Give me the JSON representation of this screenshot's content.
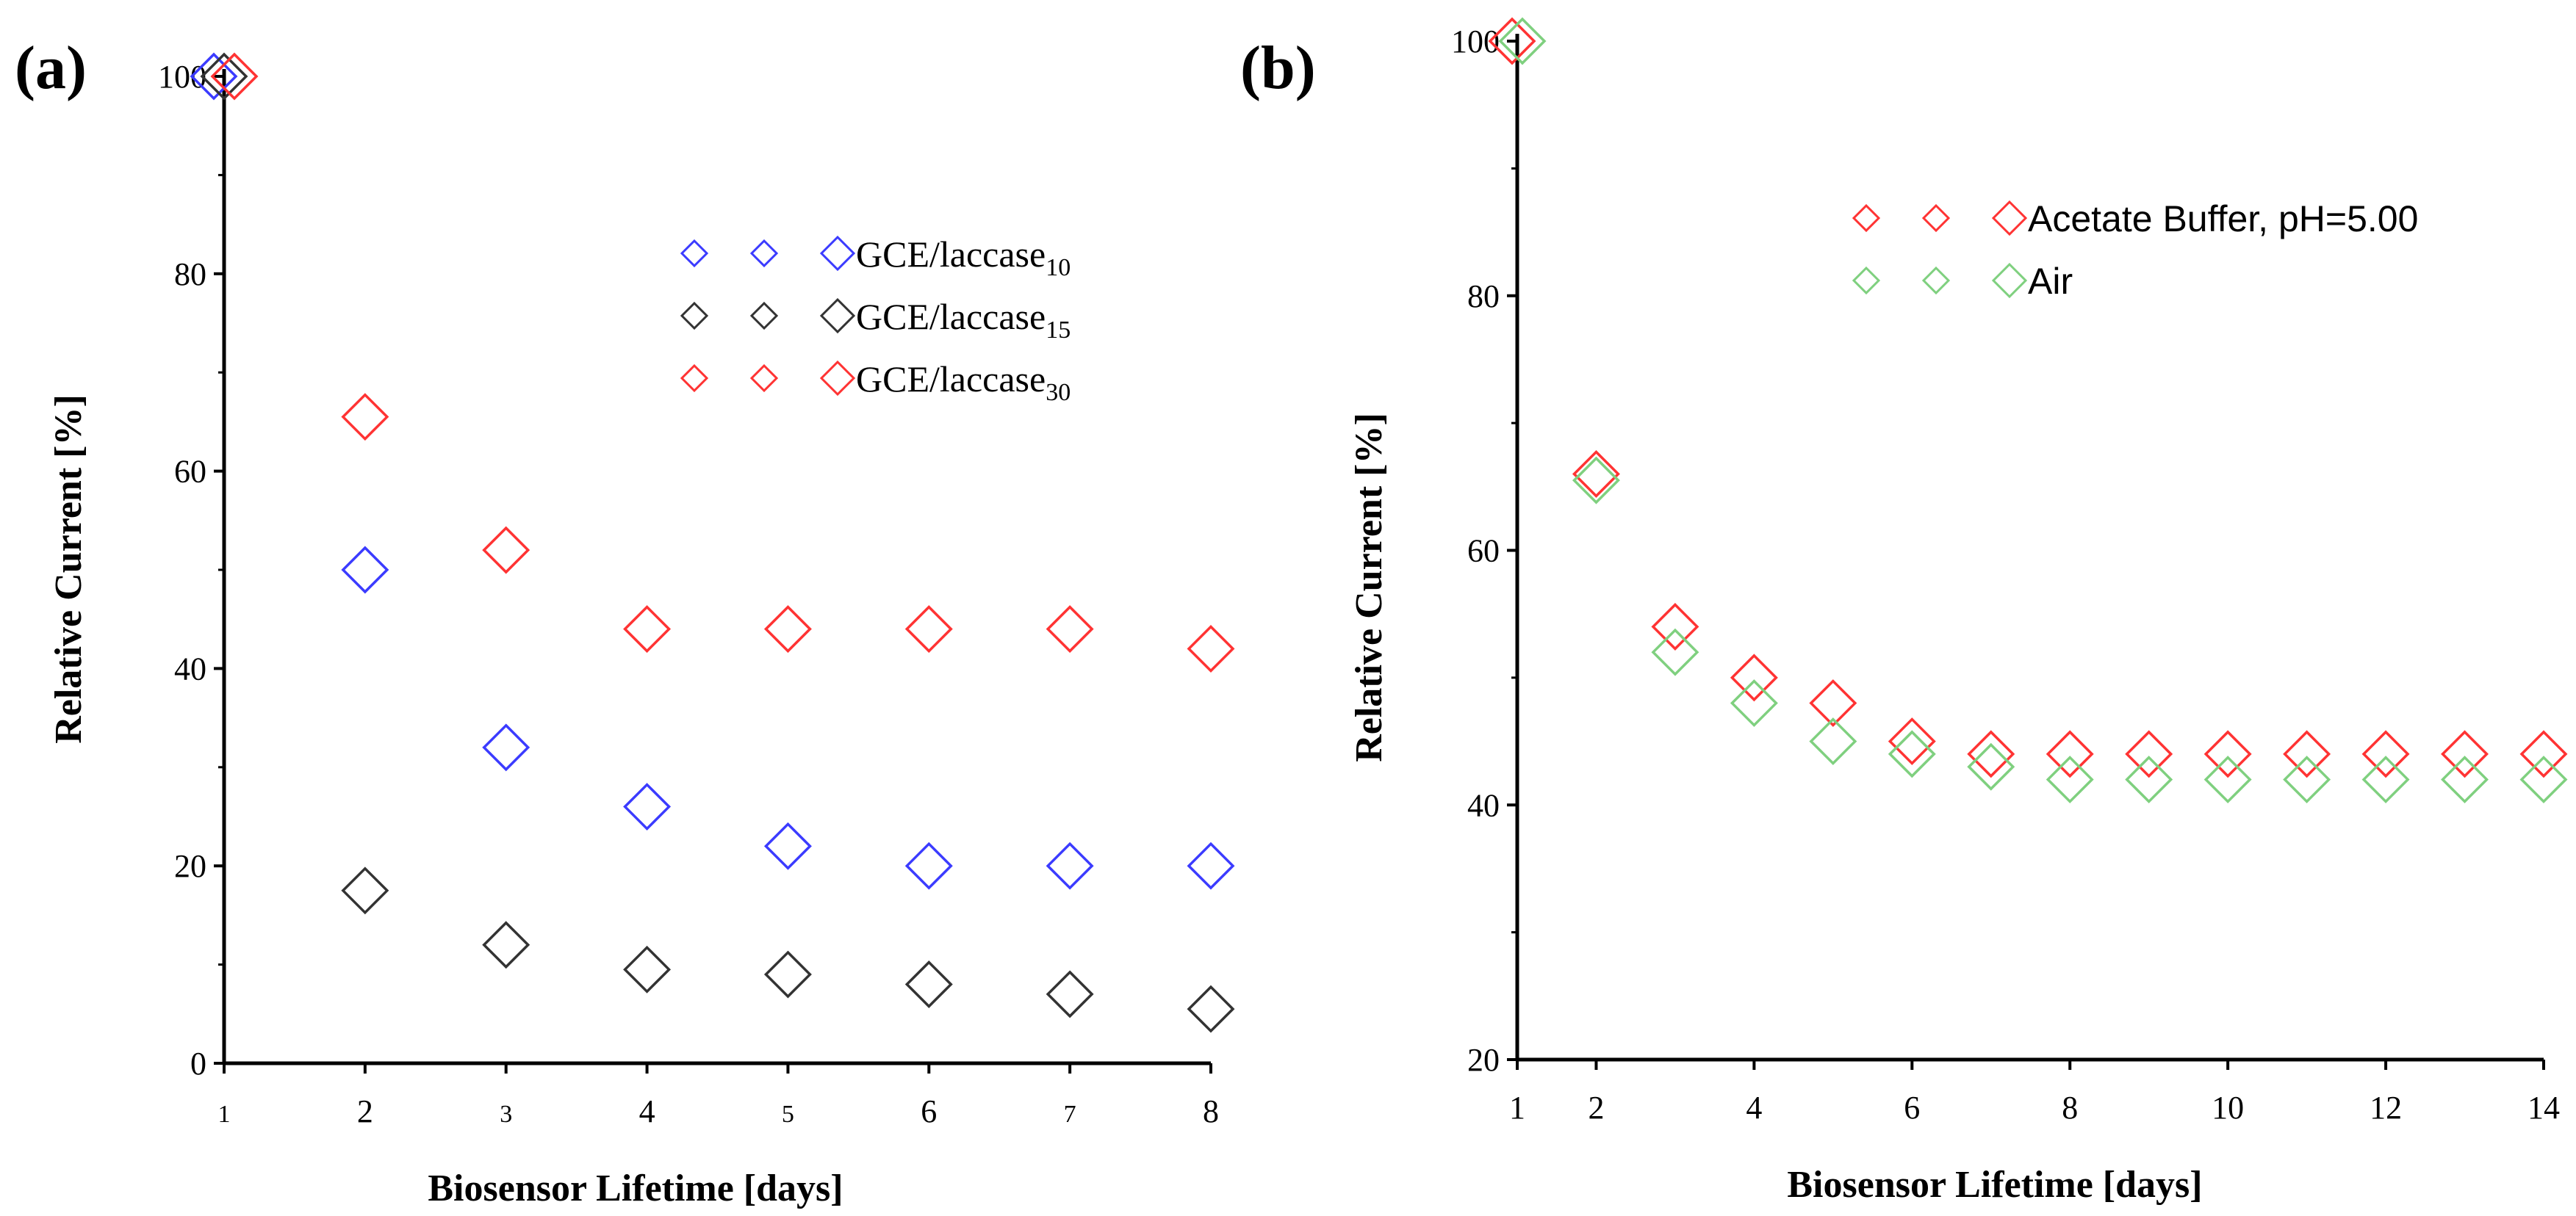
{
  "chart_data": [
    {
      "type": "scatter",
      "panel_label": "(a)",
      "title": "",
      "xlabel": "Biosensor Lifetime [days]",
      "ylabel": "Relative Current [%]",
      "xlim": [
        1,
        8
      ],
      "ylim": [
        0,
        100
      ],
      "x_ticks": [
        "1",
        "2",
        "3",
        "4",
        "5",
        "6",
        "7",
        "8"
      ],
      "y_ticks": [
        "0",
        "20",
        "40",
        "60",
        "80",
        "100"
      ],
      "legend_position": "upper-right",
      "series": [
        {
          "name": "GCE/laccase",
          "subscript": "10",
          "color": "#3b3bff",
          "x": [
            1,
            2,
            3,
            4,
            5,
            6,
            7,
            8
          ],
          "y": [
            100,
            50,
            32,
            26,
            22,
            20,
            20,
            20
          ]
        },
        {
          "name": "GCE/laccase",
          "subscript": "15",
          "color": "#333333",
          "x": [
            1,
            2,
            3,
            4,
            5,
            6,
            7,
            8
          ],
          "y": [
            100,
            17.5,
            12,
            9.5,
            9,
            8,
            7,
            5.5
          ]
        },
        {
          "name": "GCE/laccase",
          "subscript": "30",
          "color": "#ff3333",
          "x": [
            1,
            2,
            3,
            4,
            5,
            6,
            7,
            8
          ],
          "y": [
            100,
            65.5,
            52,
            44,
            44,
            44,
            44,
            42
          ]
        }
      ]
    },
    {
      "type": "scatter",
      "panel_label": "(b)",
      "title": "",
      "xlabel": "Biosensor Lifetime [days]",
      "ylabel": "Relative Current [%]",
      "xlim": [
        1,
        14
      ],
      "ylim": [
        20,
        100
      ],
      "x_ticks": [
        "1",
        "2",
        "4",
        "6",
        "8",
        "10",
        "12",
        "14"
      ],
      "y_ticks": [
        "20",
        "40",
        "60",
        "80",
        "100"
      ],
      "legend_position": "upper-right",
      "series": [
        {
          "name": "Acetate Buffer, pH=5.00",
          "color": "#ff3333",
          "x": [
            1,
            2,
            3,
            4,
            5,
            6,
            7,
            8,
            9,
            10,
            11,
            12,
            13,
            14
          ],
          "y": [
            100,
            66,
            54,
            50,
            48,
            45,
            44,
            44,
            44,
            44,
            44,
            44,
            44,
            44
          ]
        },
        {
          "name": "Air",
          "color": "#7fd07f",
          "x": [
            1,
            2,
            3,
            4,
            5,
            6,
            7,
            8,
            9,
            10,
            11,
            12,
            13,
            14
          ],
          "y": [
            100,
            65.5,
            52,
            48,
            45,
            44,
            43,
            42,
            42,
            42,
            42,
            42,
            42,
            42
          ]
        }
      ]
    }
  ]
}
